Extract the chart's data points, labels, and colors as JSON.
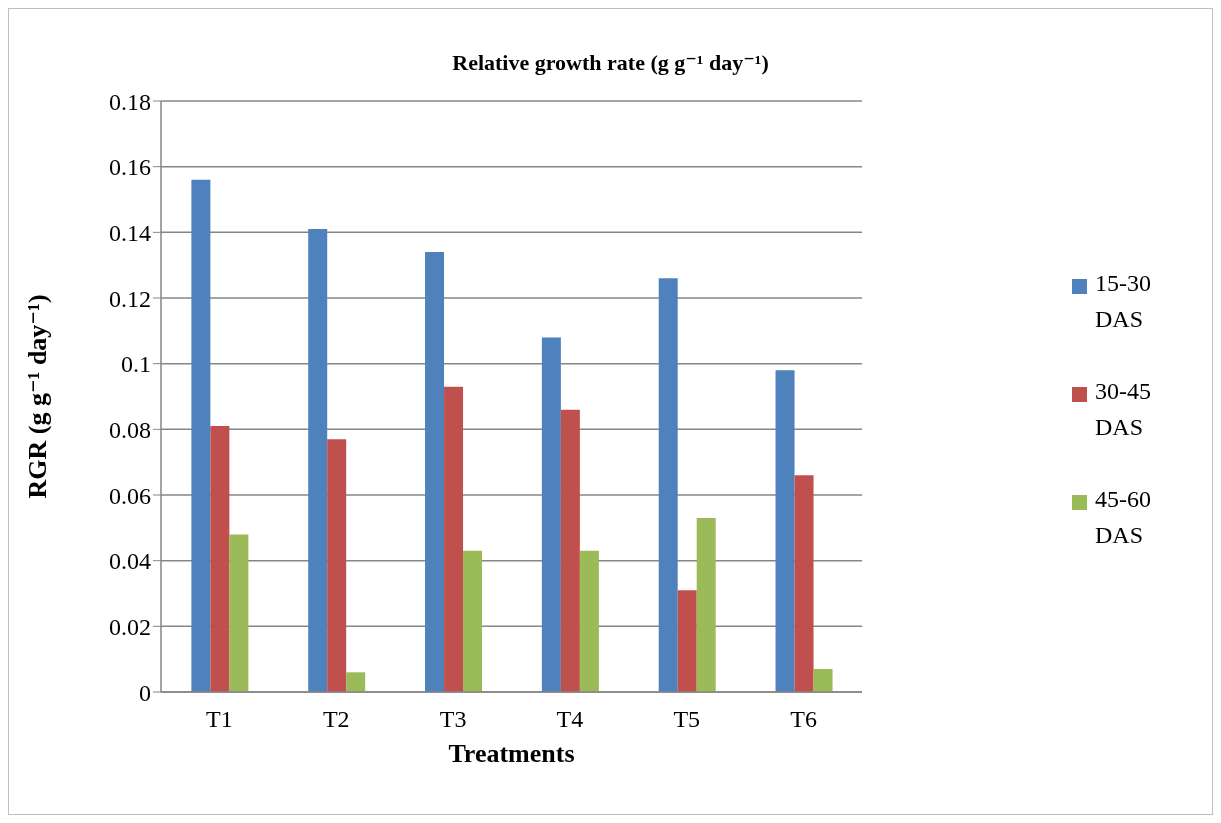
{
  "chart_data": {
    "type": "bar",
    "title": "Relative growth rate (g g⁻¹ day⁻¹)",
    "xlabel": "Treatments",
    "ylabel": "RGR (g g⁻¹ day⁻¹)",
    "categories": [
      "T1",
      "T2",
      "T3",
      "T4",
      "T5",
      "T6"
    ],
    "series": [
      {
        "name": "15-30 DAS",
        "color": "#4f81bd",
        "values": [
          0.156,
          0.141,
          0.134,
          0.108,
          0.126,
          0.098
        ]
      },
      {
        "name": "30-45 DAS",
        "color": "#c0504d",
        "values": [
          0.081,
          0.077,
          0.093,
          0.086,
          0.031,
          0.066
        ]
      },
      {
        "name": "45-60 DAS",
        "color": "#9bbb59",
        "values": [
          0.048,
          0.006,
          0.043,
          0.043,
          0.053,
          0.007
        ]
      }
    ],
    "ylim": [
      0,
      0.18
    ],
    "yticks": [
      0,
      0.02,
      0.04,
      0.06,
      0.08,
      0.1,
      0.12,
      0.14,
      0.16,
      0.18
    ],
    "grid": "y",
    "legend": "right"
  }
}
